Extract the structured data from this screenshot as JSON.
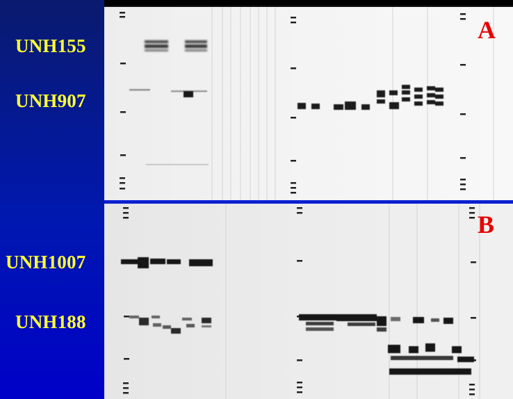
{
  "panel_a": {
    "letter": "A",
    "markers": [
      {
        "label": "UNH155"
      },
      {
        "label": "UNH907"
      }
    ]
  },
  "panel_b": {
    "letter": "B",
    "markers": [
      {
        "label": "UNH1007"
      },
      {
        "label": "UNH188"
      }
    ]
  },
  "colors": {
    "sidebar_top": "#0a1a6e",
    "sidebar_bottom": "#0000c8",
    "marker_text": "#ffff33",
    "panel_letter": "#e60000",
    "divider": "#0a20d0",
    "gel_background": "#f2f2f2",
    "band": "#1a1a1a"
  }
}
